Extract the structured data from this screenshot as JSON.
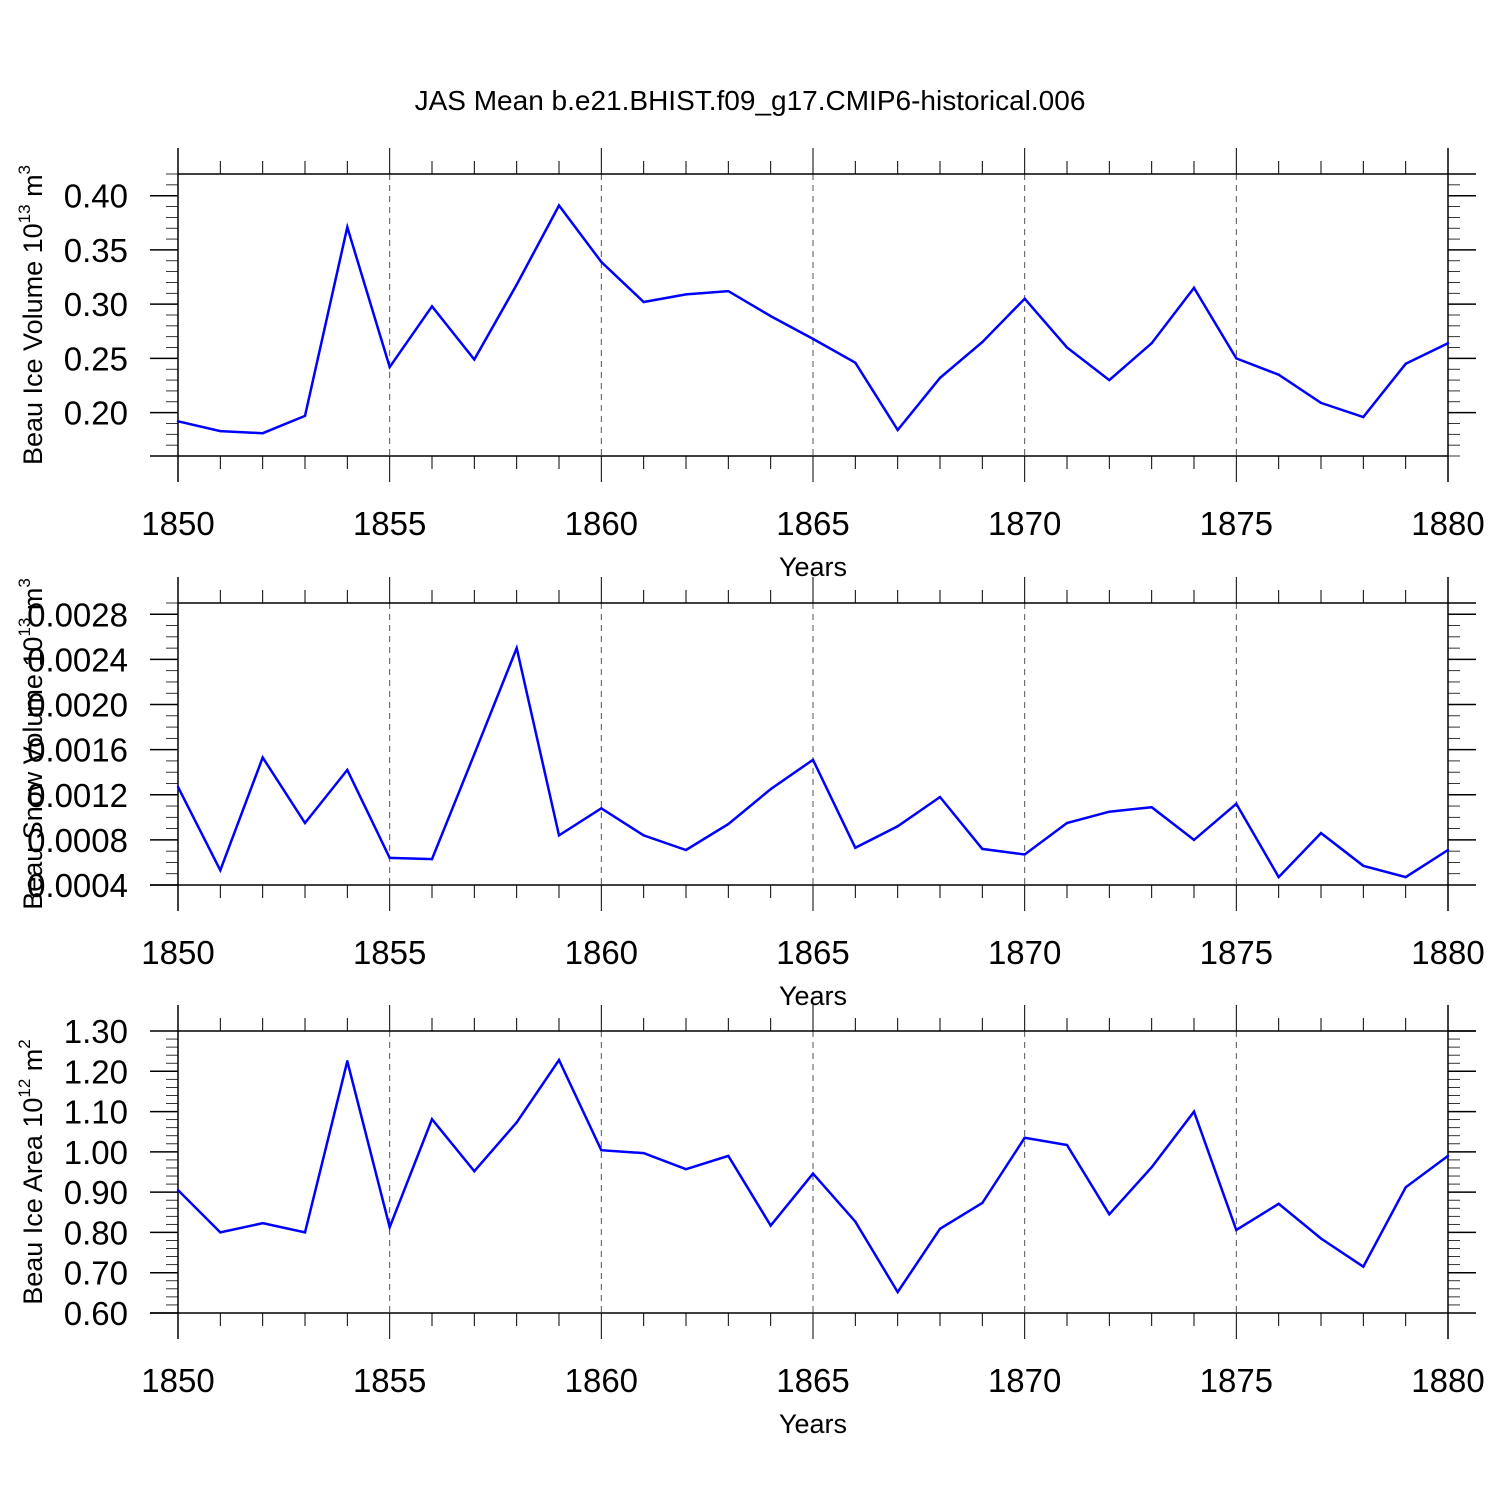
{
  "title": "JAS Mean b.e21.BHIST.f09_g17.CMIP6-historical.006",
  "chart_data": [
    {
      "type": "line",
      "title": "JAS Mean b.e21.BHIST.f09_g17.CMIP6-historical.006",
      "xlabel": "Years",
      "ylabel": "Beau Ice Volume 10",
      "ylabel_exp": "13",
      "ylabel_unit": " m",
      "ylabel_unit_exp": "3",
      "xlim": [
        1850,
        1880
      ],
      "ylim": [
        0.16,
        0.42
      ],
      "xticks": [
        1850,
        1855,
        1860,
        1865,
        1870,
        1875,
        1880
      ],
      "xtick_labels": [
        "1850",
        "1855",
        "1860",
        "1865",
        "1870",
        "1875",
        "1880"
      ],
      "yticks": [
        0.2,
        0.25,
        0.3,
        0.35,
        0.4
      ],
      "ytick_labels": [
        "0.20",
        "0.25",
        "0.30",
        "0.35",
        "0.40"
      ],
      "yminor_step": 0.01,
      "series": [
        {
          "name": "Beau Ice Volume",
          "color": "#0000ff",
          "x": [
            1850,
            1851,
            1852,
            1853,
            1854,
            1855,
            1856,
            1857,
            1858,
            1859,
            1860,
            1861,
            1862,
            1863,
            1864,
            1865,
            1866,
            1867,
            1868,
            1869,
            1870,
            1871,
            1872,
            1873,
            1874,
            1875,
            1876,
            1877,
            1878,
            1879,
            1880
          ],
          "values": [
            0.192,
            0.183,
            0.181,
            0.197,
            0.371,
            0.242,
            0.298,
            0.249,
            0.318,
            0.391,
            0.339,
            0.302,
            0.309,
            0.312,
            0.289,
            0.268,
            0.246,
            0.184,
            0.232,
            0.265,
            0.305,
            0.26,
            0.23,
            0.264,
            0.315,
            0.25,
            0.235,
            0.209,
            0.196,
            0.245,
            0.264
          ]
        }
      ]
    },
    {
      "type": "line",
      "xlabel": "Years",
      "ylabel": "Beau Snow Volume 10",
      "ylabel_exp": "13",
      "ylabel_unit": " m",
      "ylabel_unit_exp": "3",
      "xlim": [
        1850,
        1880
      ],
      "ylim": [
        0.0004,
        0.0029
      ],
      "xticks": [
        1850,
        1855,
        1860,
        1865,
        1870,
        1875,
        1880
      ],
      "xtick_labels": [
        "1850",
        "1855",
        "1860",
        "1865",
        "1870",
        "1875",
        "1880"
      ],
      "yticks": [
        0.0004,
        0.0008,
        0.0012,
        0.0016,
        0.002,
        0.0024,
        0.0028
      ],
      "ytick_labels": [
        "0.0004",
        "0.0008",
        "0.0012",
        "0.0016",
        "0.0020",
        "0.0024",
        "0.0028"
      ],
      "yminor_step": 0.0001,
      "series": [
        {
          "name": "Beau Snow Volume",
          "color": "#0000ff",
          "x": [
            1850,
            1851,
            1852,
            1853,
            1854,
            1855,
            1856,
            1857,
            1858,
            1859,
            1860,
            1861,
            1862,
            1863,
            1864,
            1865,
            1866,
            1867,
            1868,
            1869,
            1870,
            1871,
            1872,
            1873,
            1874,
            1875,
            1876,
            1877,
            1878,
            1879,
            1880
          ],
          "values": [
            0.00127,
            0.00053,
            0.00153,
            0.00095,
            0.00142,
            0.00064,
            0.00063,
            0.00156,
            0.0025,
            0.00084,
            0.00108,
            0.00084,
            0.00071,
            0.00094,
            0.00125,
            0.00151,
            0.00073,
            0.00092,
            0.00118,
            0.00072,
            0.00067,
            0.00095,
            0.00105,
            0.00109,
            0.0008,
            0.00112,
            0.00047,
            0.00086,
            0.00057,
            0.00047,
            0.00071
          ]
        }
      ]
    },
    {
      "type": "line",
      "xlabel": "Years",
      "ylabel": "Beau Ice Area 10",
      "ylabel_exp": "12",
      "ylabel_unit": " m",
      "ylabel_unit_exp": "2",
      "xlim": [
        1850,
        1880
      ],
      "ylim": [
        0.6,
        1.3
      ],
      "xticks": [
        1850,
        1855,
        1860,
        1865,
        1870,
        1875,
        1880
      ],
      "xtick_labels": [
        "1850",
        "1855",
        "1860",
        "1865",
        "1870",
        "1875",
        "1880"
      ],
      "yticks": [
        0.6,
        0.7,
        0.8,
        0.9,
        1.0,
        1.1,
        1.2,
        1.3
      ],
      "ytick_labels": [
        "0.60",
        "0.70",
        "0.80",
        "0.90",
        "1.00",
        "1.10",
        "1.20",
        "1.30"
      ],
      "yminor_step": 0.02,
      "series": [
        {
          "name": "Beau Ice Area",
          "color": "#0000ff",
          "x": [
            1850,
            1851,
            1852,
            1853,
            1854,
            1855,
            1856,
            1857,
            1858,
            1859,
            1860,
            1861,
            1862,
            1863,
            1864,
            1865,
            1866,
            1867,
            1868,
            1869,
            1870,
            1871,
            1872,
            1873,
            1874,
            1875,
            1876,
            1877,
            1878,
            1879,
            1880
          ],
          "values": [
            0.905,
            0.8,
            0.823,
            0.8,
            1.225,
            0.813,
            1.081,
            0.952,
            1.073,
            1.228,
            1.004,
            0.997,
            0.957,
            0.99,
            0.817,
            0.946,
            0.827,
            0.652,
            0.809,
            0.873,
            1.035,
            1.017,
            0.845,
            0.962,
            1.1,
            0.806,
            0.871,
            0.785,
            0.715,
            0.912,
            0.99
          ]
        }
      ]
    }
  ]
}
